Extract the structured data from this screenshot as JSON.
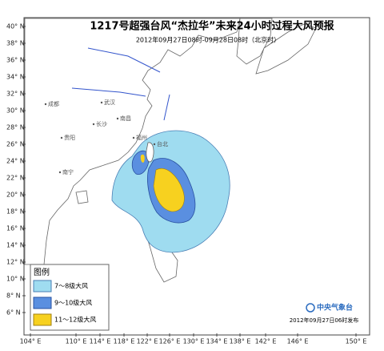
{
  "header": {
    "title": "1217号超强台风“杰拉华”未来24小时过程大风预报",
    "subtitle": "2012年09月27日08时-09月28日08时（北京时）"
  },
  "map": {
    "lat_ticks": [
      "40° N",
      "38° N",
      "36° N",
      "34° N",
      "32° N",
      "30° N",
      "28° N",
      "26° N",
      "24° N",
      "22° N",
      "20° N",
      "18° N",
      "16° N",
      "14° N",
      "12° N",
      "10° N",
      "8° N",
      "6° N"
    ],
    "lon_ticks": [
      "104° E",
      "110° E",
      "114° E",
      "118° E",
      "122° E",
      "126° E",
      "130° E",
      "134° E",
      "138° E",
      "142° E",
      "146° E",
      "150° E"
    ],
    "places": [
      "成都",
      "武汉",
      "长沙",
      "南昌",
      "福州",
      "贵阳",
      "南宁",
      "台北"
    ]
  },
  "legend": {
    "title": "图例",
    "items": [
      "7～8级大风",
      "9～10级大风",
      "11～12级大风"
    ]
  },
  "footer": {
    "agency": "中央气象台",
    "issued": "2012年09月27日06时发布"
  }
}
